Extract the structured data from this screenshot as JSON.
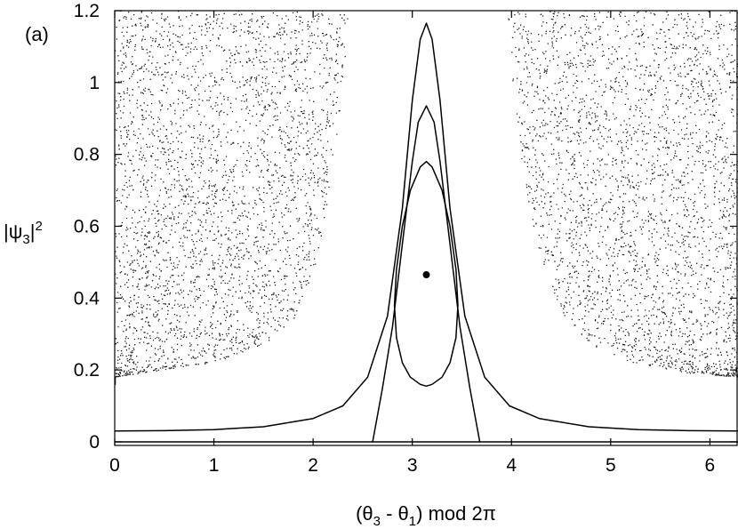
{
  "chart_data": {
    "type": "scatter",
    "panel_label": "(a)",
    "xlabel_parts": [
      "(θ",
      "3",
      " - θ",
      "1",
      ") mod 2π"
    ],
    "ylabel_parts": [
      "|ψ",
      "3",
      "|",
      "2"
    ],
    "xlim": [
      0,
      6.2832
    ],
    "ylim": [
      -0.01,
      1.2
    ],
    "xticks": [
      0,
      1,
      2,
      3,
      4,
      5,
      6
    ],
    "xtick_labels": [
      "0",
      "1",
      "2",
      "3",
      "4",
      "5",
      "6"
    ],
    "yticks": [
      0,
      0.2,
      0.4,
      0.6,
      0.8,
      1.0,
      1.2
    ],
    "ytick_labels": [
      "0",
      "0.2",
      "0.4",
      "0.6",
      "0.8",
      "1",
      "1.2"
    ],
    "grid": false,
    "fixed_point": {
      "x": 3.1416,
      "y": 0.465
    },
    "curves": [
      {
        "x": [
          0,
          0.5,
          1.0,
          1.5,
          2.0,
          2.3,
          2.55,
          2.75,
          2.9,
          3.0,
          3.08,
          3.1416,
          3.2,
          3.28,
          3.38,
          3.53,
          3.73,
          3.98,
          4.28,
          4.78,
          5.28,
          5.78,
          6.2832
        ],
        "y": [
          0.03,
          0.031,
          0.034,
          0.042,
          0.065,
          0.1,
          0.18,
          0.35,
          0.65,
          0.95,
          1.12,
          1.165,
          1.12,
          0.95,
          0.65,
          0.35,
          0.18,
          0.1,
          0.065,
          0.042,
          0.034,
          0.031,
          0.03
        ]
      },
      {
        "x": [
          2.6,
          2.7,
          2.8,
          2.9,
          3.0,
          3.06,
          3.1416,
          3.22,
          3.28,
          3.38,
          3.48,
          3.58,
          3.68
        ],
        "y": [
          0.0,
          0.15,
          0.32,
          0.55,
          0.78,
          0.89,
          0.935,
          0.89,
          0.78,
          0.55,
          0.32,
          0.15,
          0.0
        ]
      },
      {
        "closed": true,
        "x": [
          3.1416,
          3.2,
          3.3,
          3.38,
          3.44,
          3.46,
          3.44,
          3.38,
          3.3,
          3.2,
          3.1416,
          3.08,
          2.98,
          2.9,
          2.84,
          2.82,
          2.84,
          2.9,
          2.98,
          3.08
        ],
        "y": [
          0.78,
          0.765,
          0.7,
          0.6,
          0.48,
          0.38,
          0.29,
          0.22,
          0.18,
          0.16,
          0.155,
          0.16,
          0.18,
          0.22,
          0.29,
          0.38,
          0.48,
          0.6,
          0.7,
          0.765
        ]
      },
      {
        "x": [
          0,
          6.2832
        ],
        "y": [
          0.0,
          0.0
        ]
      }
    ],
    "chaotic_sea_boundary": {
      "left_x": [
        0.0,
        0.5,
        1.0,
        1.5,
        1.8,
        2.0,
        2.1,
        2.2,
        2.3,
        2.35
      ],
      "left_y": [
        0.18,
        0.2,
        0.22,
        0.27,
        0.34,
        0.47,
        0.6,
        0.78,
        1.0,
        1.2
      ],
      "right_x": [
        3.95,
        4.0,
        4.1,
        4.2,
        4.35,
        4.5,
        4.8,
        5.2,
        5.8,
        6.2832
      ],
      "right_y": [
        1.2,
        1.0,
        0.78,
        0.6,
        0.47,
        0.36,
        0.27,
        0.22,
        0.19,
        0.18
      ]
    }
  }
}
